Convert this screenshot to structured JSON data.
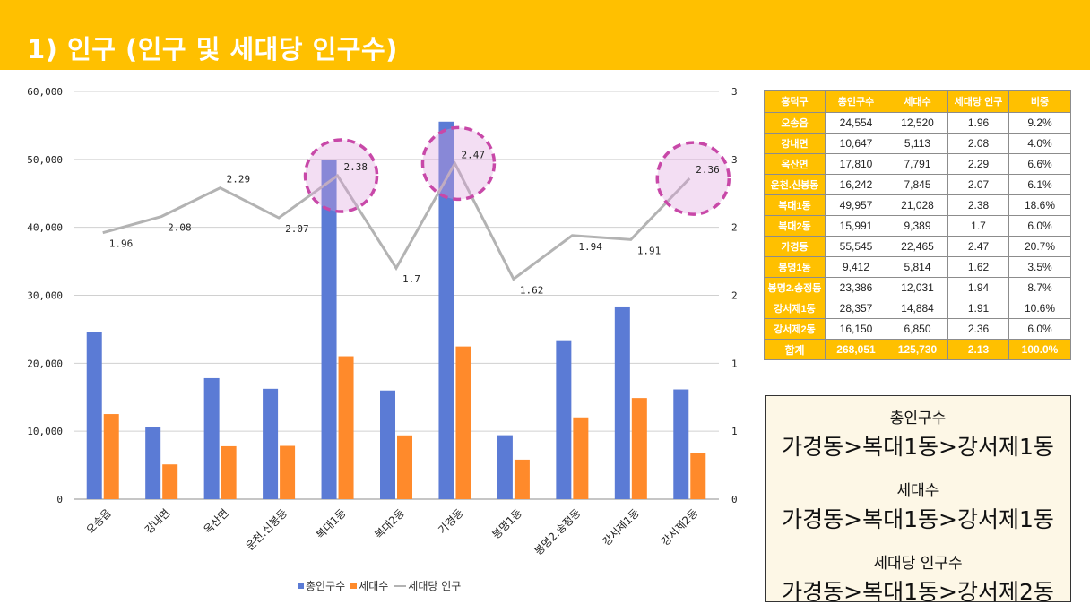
{
  "page_title": "1) 인구 (인구 및 세대당 인구수)",
  "colors": {
    "header": "#ffc000",
    "bar_population": "#5b7bd5",
    "bar_households": "#ff8a2b",
    "line": "#b3b3b3",
    "highlight": "#c848a8"
  },
  "chart_data": {
    "type": "bar",
    "categories": [
      "오송읍",
      "강내면",
      "옥산면",
      "운천.신봉동",
      "복대1동",
      "복대2동",
      "가경동",
      "봉명1동",
      "봉명2.송정동",
      "강서제1동",
      "강서제2동"
    ],
    "series": [
      {
        "name": "총인구수",
        "type": "bar",
        "axis": "left",
        "values": [
          24554,
          10647,
          17810,
          16242,
          49957,
          15991,
          55545,
          9412,
          23386,
          28357,
          16150
        ]
      },
      {
        "name": "세대수",
        "type": "bar",
        "axis": "left",
        "values": [
          12520,
          5113,
          7791,
          7845,
          21028,
          9389,
          22465,
          5814,
          12031,
          14884,
          6850
        ]
      },
      {
        "name": "세대당 인구",
        "type": "line",
        "axis": "right",
        "values": [
          1.96,
          2.08,
          2.29,
          2.07,
          2.38,
          1.7,
          2.47,
          1.62,
          1.94,
          1.91,
          2.36
        ]
      }
    ],
    "y_left": {
      "ylim": [
        0,
        60000
      ],
      "ticks": [
        "0",
        "10,000",
        "20,000",
        "30,000",
        "40,000",
        "50,000",
        "60,000"
      ]
    },
    "y_right": {
      "ticks": [
        "0",
        "1",
        "1",
        "2",
        "2",
        "3",
        "3"
      ]
    },
    "line_labels": [
      "1.96",
      "2.08",
      "2.29",
      "2.07",
      "2.38",
      "1.7",
      "2.47",
      "1.62",
      "1.94",
      "1.91",
      "2.36"
    ],
    "highlighted_categories": [
      "복대1동",
      "가경동",
      "강서제2동"
    ],
    "grid": true,
    "legend_position": "bottom"
  },
  "table": {
    "headers": [
      "흥덕구",
      "총인구수",
      "세대수",
      "세대당 인구",
      "비중"
    ],
    "rows": [
      [
        "오송읍",
        "24,554",
        "12,520",
        "1.96",
        "9.2%"
      ],
      [
        "강내면",
        "10,647",
        "5,113",
        "2.08",
        "4.0%"
      ],
      [
        "옥산면",
        "17,810",
        "7,791",
        "2.29",
        "6.6%"
      ],
      [
        "운천.신봉동",
        "16,242",
        "7,845",
        "2.07",
        "6.1%"
      ],
      [
        "복대1동",
        "49,957",
        "21,028",
        "2.38",
        "18.6%"
      ],
      [
        "복대2동",
        "15,991",
        "9,389",
        "1.7",
        "6.0%"
      ],
      [
        "가경동",
        "55,545",
        "22,465",
        "2.47",
        "20.7%"
      ],
      [
        "봉명1동",
        "9,412",
        "5,814",
        "1.62",
        "3.5%"
      ],
      [
        "봉명2.송정동",
        "23,386",
        "12,031",
        "1.94",
        "8.7%"
      ],
      [
        "강서제1동",
        "28,357",
        "14,884",
        "1.91",
        "10.6%"
      ],
      [
        "강서제2동",
        "16,150",
        "6,850",
        "2.36",
        "6.0%"
      ]
    ],
    "total": [
      "합계",
      "268,051",
      "125,730",
      "2.13",
      "100.0%"
    ]
  },
  "summary": {
    "population_label": "총인구수",
    "population_rank": "가경동>복대1동>강서제1동",
    "households_label": "세대수",
    "households_rank": "가경동>복대1동>강서제1동",
    "per_household_label": "세대당 인구수",
    "per_household_rank": "가경동>복대1동>강서제2동"
  }
}
